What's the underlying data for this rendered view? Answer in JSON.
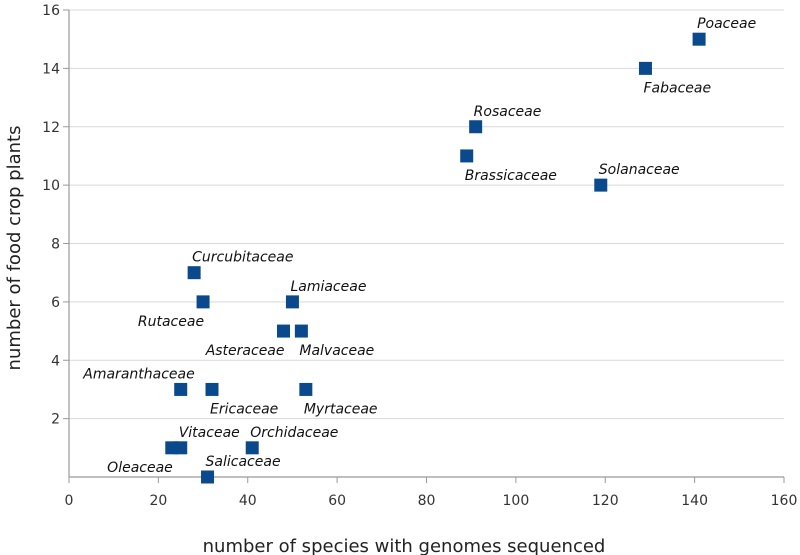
{
  "chart_data": {
    "type": "scatter",
    "title": "",
    "xlabel": "number of species with genomes sequenced",
    "ylabel": "number of food crop plants",
    "xlim": [
      0,
      160
    ],
    "ylim": [
      0,
      16
    ],
    "xticks": [
      0,
      20,
      40,
      60,
      80,
      100,
      120,
      140,
      160
    ],
    "yticks": [
      2,
      4,
      6,
      8,
      10,
      12,
      14,
      16
    ],
    "xtick_labels": [
      "0",
      "20",
      "40",
      "60",
      "80",
      "100",
      "120",
      "140",
      "160"
    ],
    "ytick_labels": [
      "2",
      "4",
      "6",
      "8",
      "10",
      "12",
      "14",
      "16"
    ],
    "grid": true,
    "marker_color": "#0a4a8c",
    "points": [
      {
        "name": "Poaceae",
        "x": 141,
        "y": 15,
        "label_pos": "above-right"
      },
      {
        "name": "Fabaceae",
        "x": 129,
        "y": 14,
        "label_pos": "below-right"
      },
      {
        "name": "Rosaceae",
        "x": 91,
        "y": 12,
        "label_pos": "above-right"
      },
      {
        "name": "Brassicaceae",
        "x": 89,
        "y": 11,
        "label_pos": "below-right"
      },
      {
        "name": "Solanaceae",
        "x": 119,
        "y": 10,
        "label_pos": "above-right"
      },
      {
        "name": "Curcubitaceae",
        "x": 28,
        "y": 7,
        "label_pos": "above-right"
      },
      {
        "name": "Rutaceae",
        "x": 30,
        "y": 6,
        "label_pos": "below-left"
      },
      {
        "name": "Lamiaceae",
        "x": 50,
        "y": 6,
        "label_pos": "above-right"
      },
      {
        "name": "Asteraceae",
        "x": 48,
        "y": 5,
        "label_pos": "below-left"
      },
      {
        "name": "Malvaceae",
        "x": 52,
        "y": 5,
        "label_pos": "below-right"
      },
      {
        "name": "Amaranthaceae",
        "x": 25,
        "y": 3,
        "label_pos": "above-left"
      },
      {
        "name": "Ericaceae",
        "x": 32,
        "y": 3,
        "label_pos": "below-right"
      },
      {
        "name": "Myrtaceae",
        "x": 53,
        "y": 3,
        "label_pos": "below-right"
      },
      {
        "name": "Vitaceae",
        "x": 25,
        "y": 1,
        "label_pos": "above-right"
      },
      {
        "name": "Oleaceae",
        "x": 23,
        "y": 1,
        "label_pos": "below-left"
      },
      {
        "name": "Orchidaceae",
        "x": 41,
        "y": 1,
        "label_pos": "above-right"
      },
      {
        "name": "Salicaceae",
        "x": 31,
        "y": 0,
        "label_pos": "above-right"
      }
    ]
  }
}
